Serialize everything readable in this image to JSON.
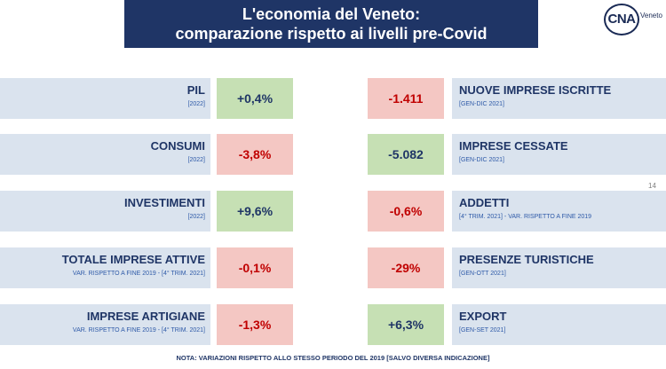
{
  "title": {
    "line1": "L'economia del Veneto:",
    "line2": "comparazione rispetto ai livelli pre-Covid"
  },
  "logo": {
    "brand": "CNA",
    "region": "Veneto"
  },
  "page_number": "14",
  "left": [
    {
      "label": "PIL",
      "period": "[2022]",
      "value": "+0,4%",
      "trend": "positive"
    },
    {
      "label": "CONSUMI",
      "period": "[2022]",
      "value": "-3,8%",
      "trend": "negative"
    },
    {
      "label": "INVESTIMENTI",
      "period": "[2022]",
      "value": "+9,6%",
      "trend": "positive"
    },
    {
      "label": "TOTALE IMPRESE ATTIVE",
      "period": "VAR. RISPETTO A FINE 2019 - [4° TRIM. 2021]",
      "value": "-0,1%",
      "trend": "negative"
    },
    {
      "label": "IMPRESE ARTIGIANE",
      "period": "VAR. RISPETTO A FINE 2019 - [4° TRIM. 2021]",
      "value": "-1,3%",
      "trend": "negative"
    }
  ],
  "right": [
    {
      "label": "NUOVE IMPRESE ISCRITTE",
      "period": "[GEN-DIC 2021]",
      "value": "-1.411",
      "trend": "negative"
    },
    {
      "label": "IMPRESE CESSATE",
      "period": "[GEN-DIC 2021]",
      "value": "-5.082",
      "trend": "positive"
    },
    {
      "label": "ADDETTI",
      "period": "[4° TRIM. 2021] - VAR. RISPETTO A FINE 2019",
      "value": "-0,6%",
      "trend": "negative"
    },
    {
      "label": "PRESENZE TURISTICHE",
      "period": "[GEN-OTT 2021]",
      "value": "-29%",
      "trend": "negative"
    },
    {
      "label": "EXPORT",
      "period": "[GEN-SET 2021]",
      "value": "+6,3%",
      "trend": "positive"
    }
  ],
  "note": "NOTA: VARIAZIONI RISPETTO ALLO STESSO PERIODO DEL 2019 [SALVO DIVERSA INDICAZIONE]",
  "colors": {
    "title_bg": "#1f3566",
    "label_bg": "#dae3ee",
    "positive_bg": "#c6e0b4",
    "negative_bg": "#f4c7c3",
    "negative_text": "#c00000"
  }
}
